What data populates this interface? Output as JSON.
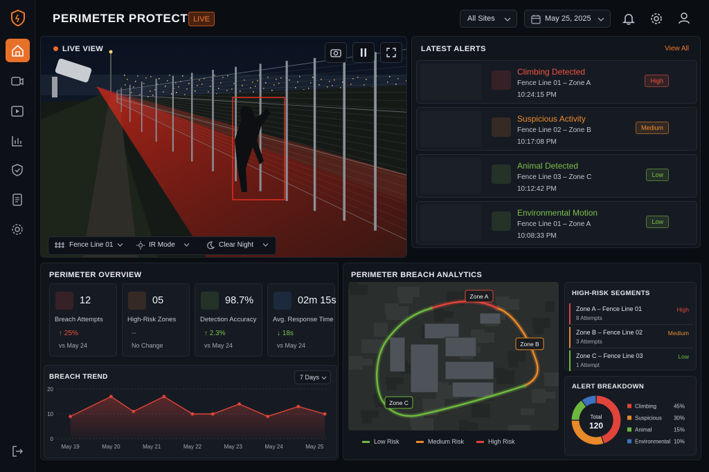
{
  "header": {
    "title": "PERIMETER PROTECTION",
    "badge": "LIVE",
    "site_filter": "All Sites",
    "date": "May 25, 2025"
  },
  "live_view": {
    "title": "LIVE VIEW",
    "controls": [
      "Fence Line 01",
      "IR Mode",
      "Clear Night"
    ]
  },
  "latest_alerts": {
    "title": "LATEST ALERTS",
    "view_all": "View All",
    "items": [
      {
        "title": "Climbing Detected",
        "location": "Fence Line 01 – Zone A",
        "time": "10:24:15 PM",
        "severity": "High",
        "color": "#f0513f"
      },
      {
        "title": "Suspicious Activity",
        "location": "Fence Line 02 – Zone B",
        "time": "10:17:08 PM",
        "severity": "Medium",
        "color": "#f08a2c"
      },
      {
        "title": "Animal Detected",
        "location": "Fence Line 03 – Zone C",
        "time": "10:12:42 PM",
        "severity": "Low",
        "color": "#7cbf4a"
      },
      {
        "title": "Environmental Motion",
        "location": "Fence Line 01 – Zone A",
        "time": "10:08:33 PM",
        "severity": "Low",
        "color": "#7cbf4a"
      }
    ]
  },
  "perimeter_overview": {
    "title": "PERIMETER OVERVIEW",
    "stats": [
      {
        "value": "12",
        "label": "Breach Attempts",
        "change": "↑ 25%",
        "comparison": "vs May 24",
        "color": "#f0513f",
        "change_color": "#f0513f"
      },
      {
        "value": "05",
        "label": "High-Risk Zones",
        "change": "--",
        "comparison": "No Change",
        "color": "#f08a2c",
        "change_color": "#8a8f98"
      },
      {
        "value": "98.7%",
        "label": "Detection Accuracy",
        "change": "↑ 2.3%",
        "comparison": "vs May 24",
        "color": "#7cbf4a",
        "change_color": "#7cbf4a"
      },
      {
        "value": "02m 15s",
        "label": "Avg. Response Time",
        "change": "↓ 18s",
        "comparison": "vs May 24",
        "color": "#4a86e0",
        "change_color": "#7cbf4a"
      }
    ]
  },
  "breach_trend": {
    "type": "line",
    "title": "BREACH TREND",
    "range_filter": "7 Days",
    "color": "#e0443a",
    "x": [
      0,
      1,
      1.55,
      2.3,
      3,
      3.5,
      4.15,
      4.85,
      5.6,
      6.25
    ],
    "values": [
      9,
      17,
      11,
      17,
      10,
      10,
      14,
      9,
      13,
      10
    ],
    "xlim": [
      -0.3,
      6.3
    ],
    "ylim": [
      0,
      20
    ],
    "yticks": [
      0,
      10,
      20
    ],
    "xticks": [
      {
        "value": 0,
        "label": "May 19"
      },
      {
        "value": 1,
        "label": "May 20"
      },
      {
        "value": 2,
        "label": "May 21"
      },
      {
        "value": 3,
        "label": "May 22"
      },
      {
        "value": 4,
        "label": "May 23"
      },
      {
        "value": 5,
        "label": "May 24"
      },
      {
        "value": 6,
        "label": "May 25"
      }
    ],
    "grid": true
  },
  "breach_analytics": {
    "title": "PERIMETER BREACH ANALYTICS",
    "zones": [
      "Zone A",
      "Zone B",
      "Zone C"
    ],
    "legend": [
      {
        "name": "Low Risk",
        "color": "#6fb83f"
      },
      {
        "name": "Medium Risk",
        "color": "#e8892a"
      },
      {
        "name": "High Risk",
        "color": "#e0443a"
      }
    ],
    "segments_title": "HIGH-RISK SEGMENTS",
    "segments": [
      {
        "name": "Zone A – Fence Line 01",
        "attempts": "8 Attempts",
        "risk": "High",
        "color": "#e0443a"
      },
      {
        "name": "Zone B – Fence Line 02",
        "attempts": "3 Attempts",
        "risk": "Medium",
        "color": "#e8892a"
      },
      {
        "name": "Zone C – Fence Line 03",
        "attempts": "1 Attempt",
        "risk": "Low",
        "color": "#6fb83f"
      }
    ]
  },
  "alert_breakdown": {
    "type": "pie",
    "title": "ALERT BREAKDOWN",
    "total_label": "Total",
    "total": 120,
    "categories": [
      "Climbing",
      "Suspicious",
      "Animal",
      "Environmental"
    ],
    "values": [
      45,
      30,
      15,
      10
    ],
    "value_labels": [
      "45%",
      "30%",
      "15%",
      "10%"
    ],
    "colors": [
      "#e0443a",
      "#e8892a",
      "#6fb83f",
      "#3d73c0"
    ]
  }
}
